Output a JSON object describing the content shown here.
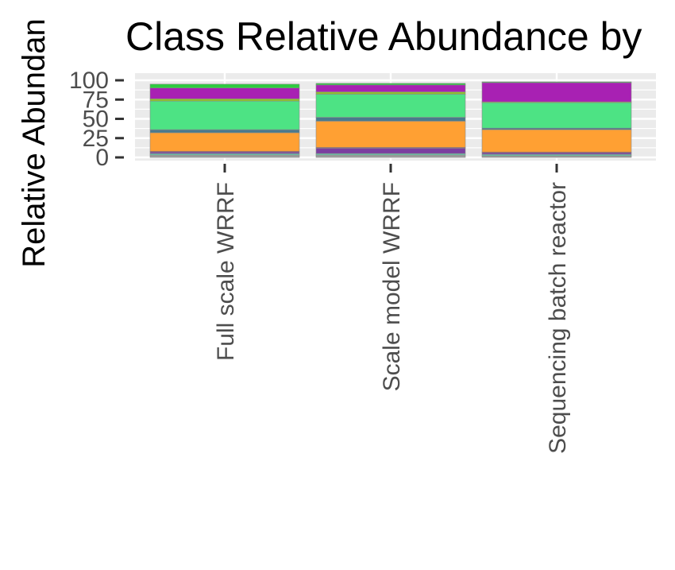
{
  "chart_data": {
    "type": "bar",
    "stacked": true,
    "title": "Class Relative Abundance by",
    "xlabel": "",
    "ylabel": "Relative Abundan",
    "ylim": [
      0,
      100
    ],
    "yticks": [
      "0",
      "25",
      "50",
      "75",
      "100"
    ],
    "grid": true,
    "categories": [
      "Full scale WRRF",
      "Scale model WRRF",
      "Sequencing batch reactor"
    ],
    "segment_colors": [
      "#9e9e9e",
      "#66c2a5",
      "#7b3fa0",
      "#c0392b",
      "#ffa033",
      "#4a7a8c",
      "#4de384",
      "#8fbf2f",
      "#a821b3",
      "#2ecc40"
    ],
    "series": [
      {
        "values": [
          3,
          3,
          2
        ]
      },
      {
        "values": [
          2,
          2,
          2
        ]
      },
      {
        "values": [
          2,
          7,
          2
        ]
      },
      {
        "values": [
          1,
          1,
          1
        ]
      },
      {
        "values": [
          24,
          34,
          29
        ]
      },
      {
        "values": [
          4,
          5,
          2
        ]
      },
      {
        "values": [
          37,
          30,
          33
        ]
      },
      {
        "values": [
          3,
          3,
          1
        ]
      },
      {
        "values": [
          14,
          9,
          25
        ]
      },
      {
        "values": [
          5,
          2,
          1
        ]
      }
    ]
  }
}
